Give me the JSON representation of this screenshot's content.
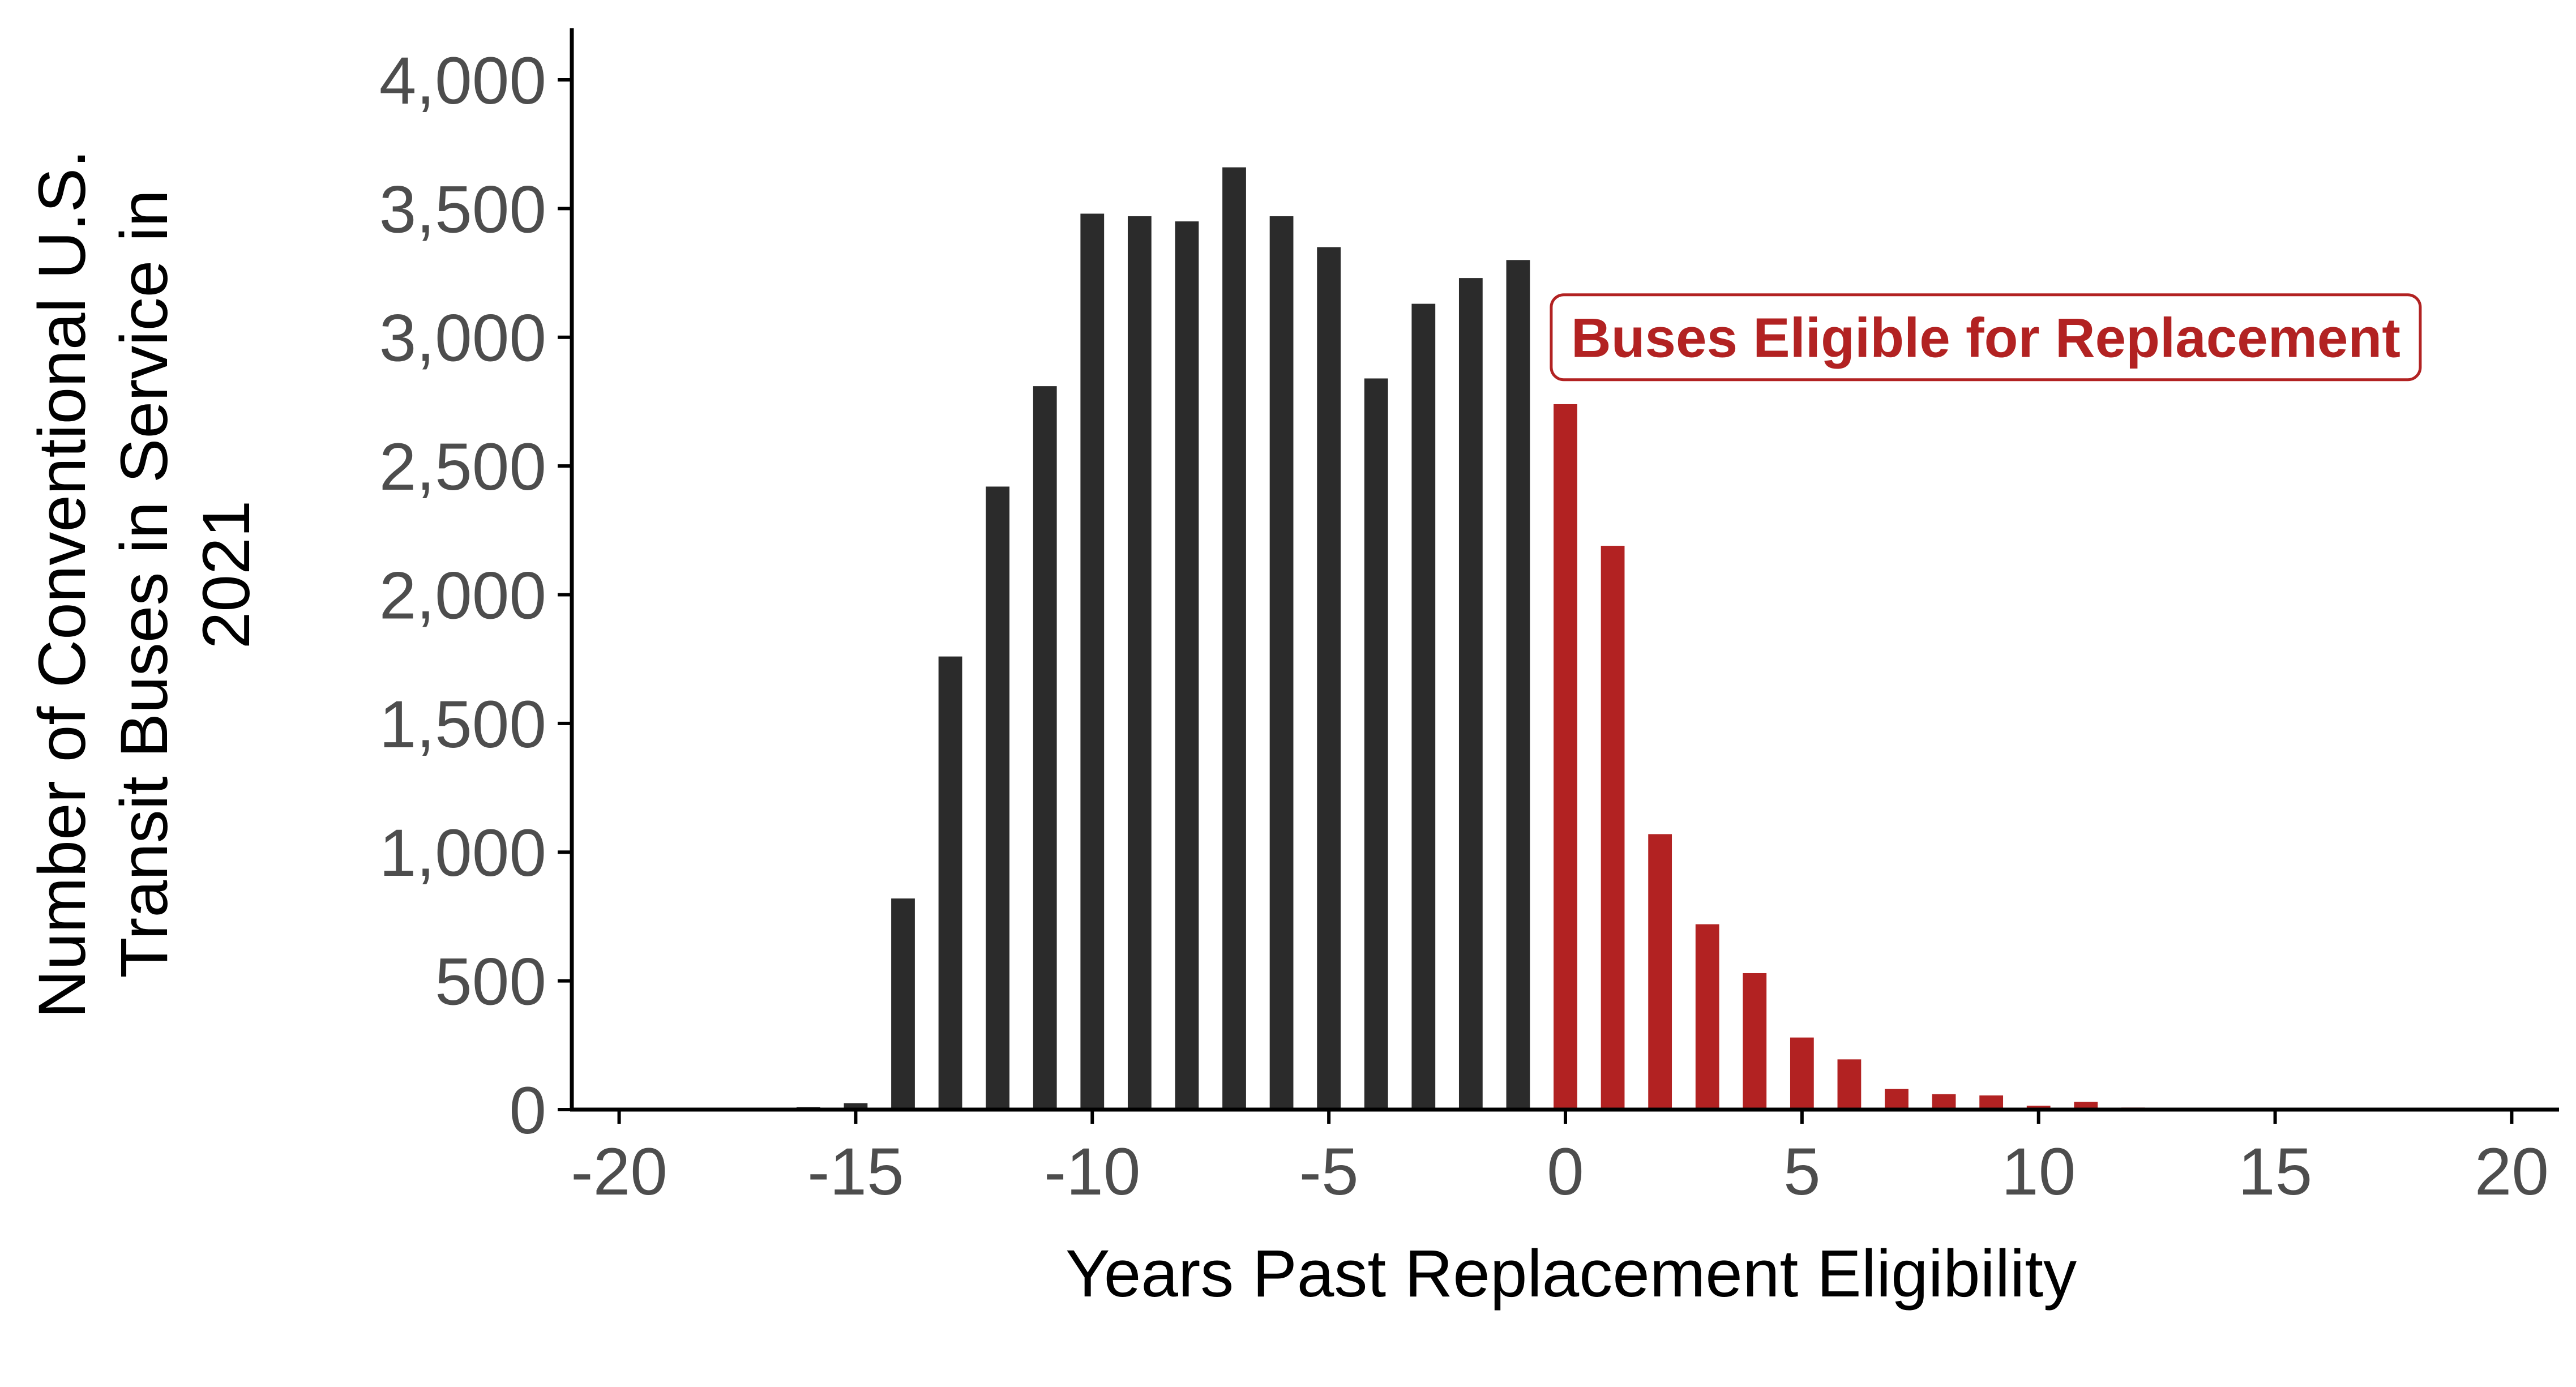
{
  "chart_data": {
    "type": "bar",
    "title": "",
    "xlabel": "Years Past Replacement Eligibility",
    "ylabel_lines": [
      "Number of Conventional U.S.",
      "Transit Buses in Service in",
      "2021"
    ],
    "xlim": [
      -21,
      21
    ],
    "ylim": [
      0,
      4200
    ],
    "x_ticks": [
      -20,
      -15,
      -10,
      -5,
      0,
      5,
      10,
      15,
      20
    ],
    "x_tick_labels": [
      "-20",
      "-15",
      "-10",
      "-5",
      "0",
      "5",
      "10",
      "15",
      "20"
    ],
    "y_ticks": [
      0,
      500,
      1000,
      1500,
      2000,
      2500,
      3000,
      3500,
      4000
    ],
    "y_tick_labels": [
      "0",
      "500",
      "1,000",
      "1,500",
      "2,000",
      "2,500",
      "3,000",
      "3,500",
      "4,000"
    ],
    "grid": false,
    "legend": "none",
    "colors": {
      "not_eligible": "#2b2b2b",
      "eligible": "#b22222",
      "axis": "#000000",
      "tick_label": "#4d4d4d"
    },
    "series": [
      {
        "x": [
          -17,
          -16,
          -15,
          -14,
          -13,
          -12,
          -11,
          -10,
          -9,
          -8,
          -7,
          -6,
          -5,
          -4,
          -3,
          -2,
          -1
        ],
        "values": [
          5,
          10,
          25,
          820,
          1760,
          2420,
          2810,
          3480,
          3470,
          3450,
          3660,
          3470,
          3350,
          2840,
          3130,
          3230,
          3300
        ],
        "color": "#2b2b2b"
      },
      {
        "x": [
          0,
          1,
          2,
          3,
          4,
          5,
          6,
          7,
          8,
          9,
          10,
          11,
          12,
          13,
          14,
          15,
          16
        ],
        "values": [
          2740,
          2190,
          1070,
          720,
          530,
          280,
          195,
          80,
          60,
          55,
          15,
          30,
          8,
          5,
          5,
          5,
          5
        ],
        "color": "#b22222"
      }
    ],
    "annotations": [
      {
        "text": "Buses Eligible for Replacement",
        "x_start": -0.3,
        "y": 3000,
        "color": "#b22222"
      }
    ]
  }
}
